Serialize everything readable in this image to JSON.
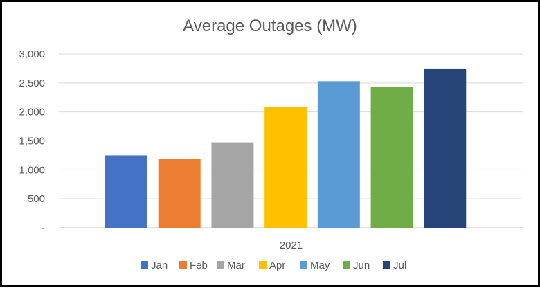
{
  "chart_data": {
    "type": "bar",
    "title": "Average Outages (MW)",
    "categories": [
      "2021"
    ],
    "series": [
      {
        "name": "Jan",
        "values": [
          1250
        ],
        "color": "#4472C4"
      },
      {
        "name": "Feb",
        "values": [
          1185
        ],
        "color": "#ED7D31"
      },
      {
        "name": "Mar",
        "values": [
          1475
        ],
        "color": "#A5A5A5"
      },
      {
        "name": "Apr",
        "values": [
          2085
        ],
        "color": "#FFC000"
      },
      {
        "name": "May",
        "values": [
          2530
        ],
        "color": "#5B9BD5"
      },
      {
        "name": "Jun",
        "values": [
          2435
        ],
        "color": "#70AD47"
      },
      {
        "name": "Jul",
        "values": [
          2750
        ],
        "color": "#264478"
      }
    ],
    "ylim": [
      0,
      3000
    ],
    "yticks": [
      0,
      500,
      1000,
      1500,
      2000,
      2500,
      3000
    ],
    "ytick_labels": [
      "-",
      "500",
      "1,000",
      "1,500",
      "2,000",
      "2,500",
      "3,000"
    ],
    "grid": true,
    "legend_position": "bottom",
    "xlabel": "",
    "ylabel": ""
  }
}
